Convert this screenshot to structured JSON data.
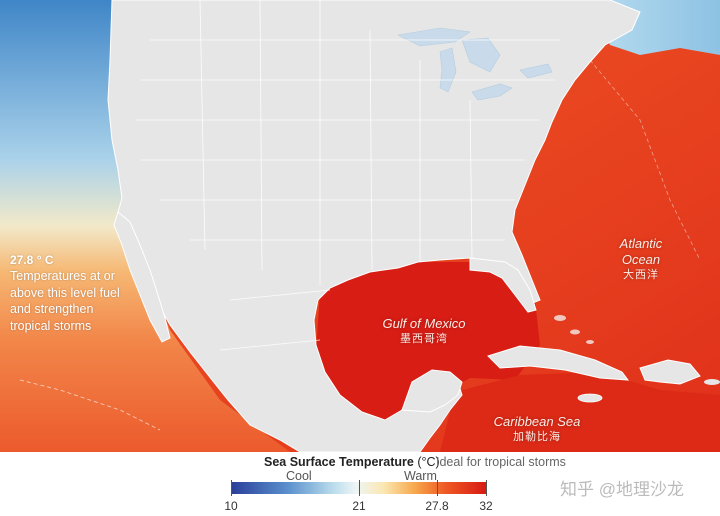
{
  "map": {
    "labels": {
      "gulf": {
        "en": "Gulf of Mexico",
        "zh": "墨西哥湾"
      },
      "atlantic": {
        "en": "Atlantic\nOcean",
        "zh": "大西洋"
      },
      "caribbean": {
        "en": "Caribbean Sea",
        "zh": "加勒比海"
      }
    },
    "threshold_note": {
      "value": "27.8 ° C",
      "text": "Temperatures at or above this level fuel and strengthen tropical storms"
    },
    "colors": {
      "land": "#e6e6e6",
      "border": "#ffffff",
      "lake": "#c9dbea",
      "warm_ocean": "#e8361c",
      "hot_ocean": "#d71a14",
      "cool_ocean": "#7fb4dc"
    }
  },
  "legend": {
    "title": "Sea Surface Temperature",
    "unit": " (°C)",
    "ideal_text": "Ideal for tropical storms",
    "cool_label": "Cool",
    "warm_label": "Warm",
    "scale_min": 10,
    "scale_max": 32,
    "ticks": [
      "10",
      "21",
      "27.8",
      "32"
    ]
  },
  "watermark": "知乎 @地理沙龙"
}
